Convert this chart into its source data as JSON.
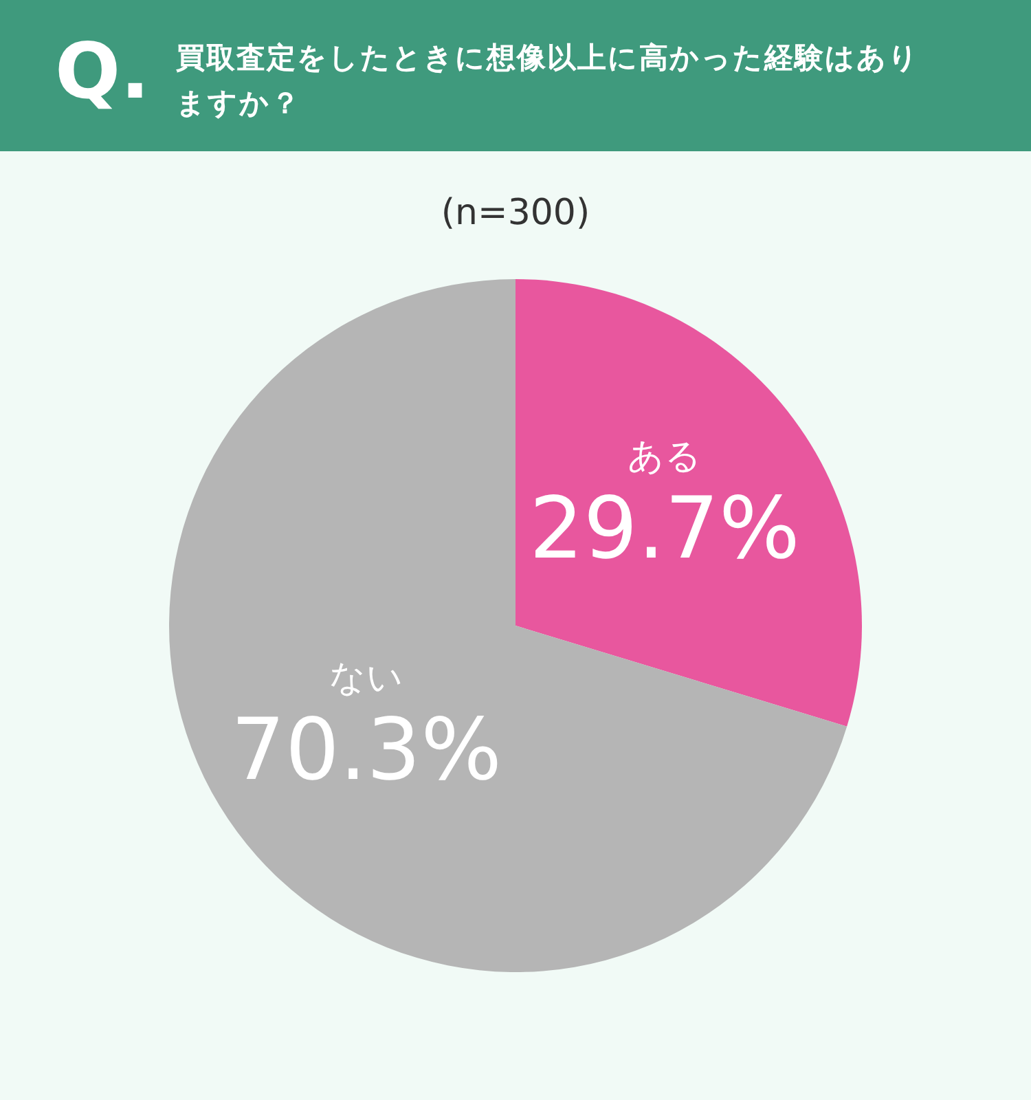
{
  "chart_data": {
    "type": "pie",
    "title": "買取査定をしたときに想像以上に高かった経験はありますか？",
    "subtitle": "(n=300)",
    "annotations": [
      "Q."
    ],
    "categories": [
      "ある",
      "ない"
    ],
    "values": [
      29.7,
      70.3
    ],
    "colors": [
      "#e8579e",
      "#b5b5b5"
    ],
    "value_labels": [
      "29.7%",
      "70.3%"
    ]
  }
}
